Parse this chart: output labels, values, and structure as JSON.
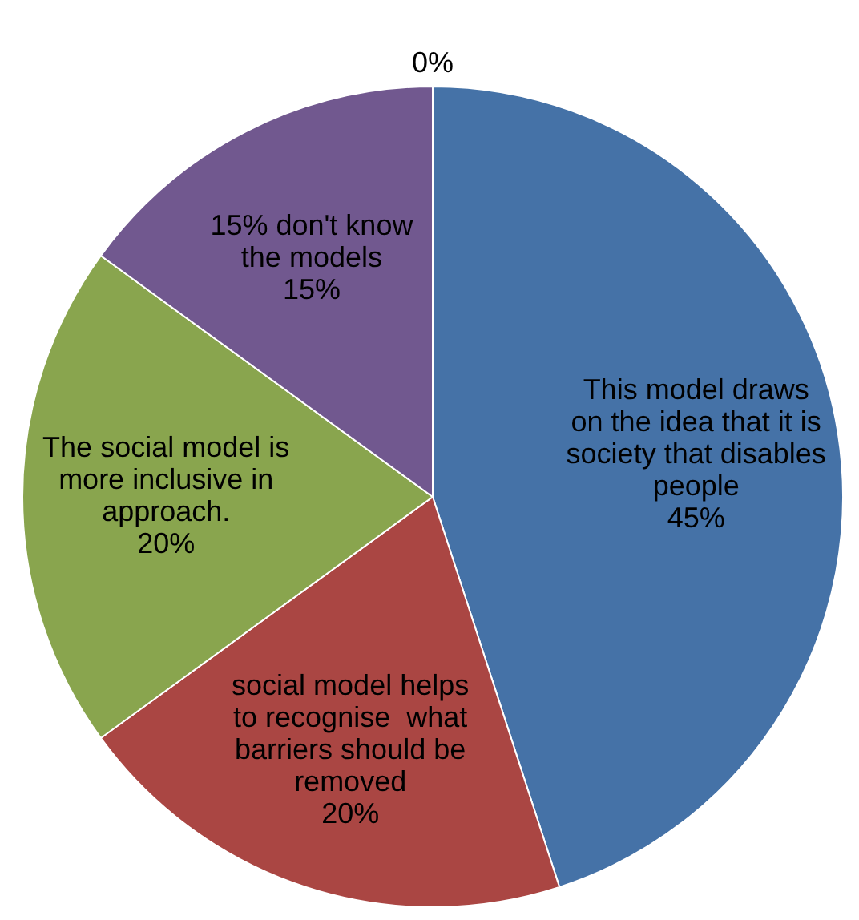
{
  "chart_data": {
    "type": "pie",
    "categories": [
      "This model draws\non the idea that it is\nsociety that disables\npeople",
      "social model helps\nto recognise  what\nbarriers should be\nremoved",
      "The social model is\nmore inclusive in\napproach.",
      "15% don't know\nthe models",
      null
    ],
    "values": [
      45,
      20,
      20,
      15,
      0
    ],
    "colors": [
      "#4572a7",
      "#aa4643",
      "#89a54e",
      "#71588f",
      "#4198af"
    ],
    "value_labels": [
      "45%",
      "20%",
      "20%",
      "15%",
      "0%"
    ]
  }
}
